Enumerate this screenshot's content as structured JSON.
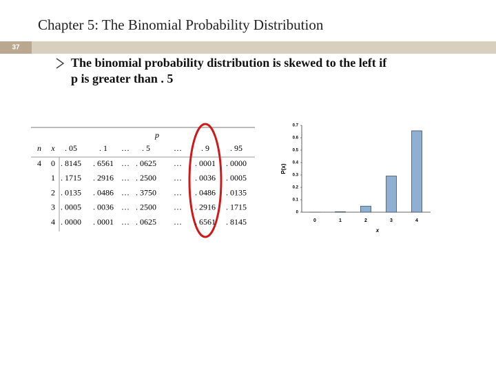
{
  "header": {
    "title": "Chapter 5: The Binomial Probability Distribution",
    "slide_number": "37"
  },
  "bullet": {
    "lines": [
      "The binomial probability distribution is skewed to the left if",
      "p is greater than . 5"
    ]
  },
  "table": {
    "p_label": "p",
    "n_label": "n",
    "x_label": "x",
    "columns": [
      ". 05",
      ". 1",
      "…",
      ". 5",
      "…",
      ". 9",
      ". 95"
    ],
    "n_value": "4",
    "rows": [
      {
        "x": "0",
        "cells": [
          ". 8145",
          ". 6561",
          "…",
          ". 0625",
          "…",
          ". 0001",
          ". 0000"
        ]
      },
      {
        "x": "1",
        "cells": [
          ". 1715",
          ". 2916",
          "…",
          ". 2500",
          "…",
          ". 0036",
          ". 0005"
        ]
      },
      {
        "x": "2",
        "cells": [
          ". 0135",
          ". 0486",
          "…",
          ". 3750",
          "…",
          ". 0486",
          ". 0135"
        ]
      },
      {
        "x": "3",
        "cells": [
          ". 0005",
          ". 0036",
          "…",
          ". 2500",
          "…",
          ". 2916",
          ". 1715"
        ]
      },
      {
        "x": "4",
        "cells": [
          ". 0000",
          ". 0001",
          "…",
          ". 0625",
          "…",
          ". 6561",
          ". 8145"
        ]
      }
    ]
  },
  "chart_data": {
    "type": "bar",
    "x_label": "x",
    "y_label": "P(x)",
    "categories": [
      "0",
      "1",
      "2",
      "3",
      "4"
    ],
    "values": [
      0.0001,
      0.0036,
      0.0486,
      0.2916,
      0.6561
    ],
    "color": "#8fb0d3",
    "ylim": [
      0,
      0.7
    ],
    "yticks": [
      0,
      0.1,
      0.2,
      0.3,
      0.4,
      0.5,
      0.6,
      0.7
    ]
  }
}
